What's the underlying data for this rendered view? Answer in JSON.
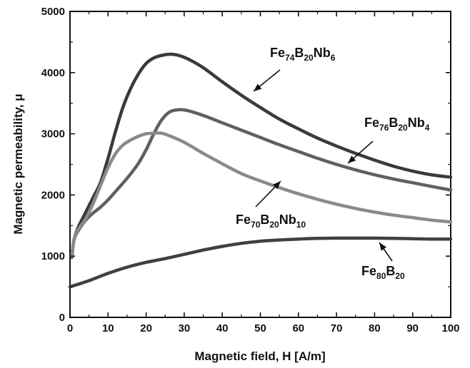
{
  "chart_data": {
    "type": "line",
    "title": "",
    "xlabel": "Magnetic field, H [A/m]",
    "ylabel": "Magnetic permeability, μ",
    "xlim": [
      0,
      100
    ],
    "ylim": [
      0,
      5000
    ],
    "xticks": [
      0,
      10,
      20,
      30,
      40,
      50,
      60,
      70,
      80,
      90,
      100
    ],
    "yticks": [
      0,
      1000,
      2000,
      3000,
      4000,
      5000
    ],
    "grid": false,
    "legend": "inline annotations with arrows",
    "series": [
      {
        "name": "Fe74B20Nb6",
        "label_parts": [
          [
            "Fe",
            ""
          ],
          [
            "74",
            "sub"
          ],
          [
            "B",
            ""
          ],
          [
            "20",
            "sub"
          ],
          [
            "Nb",
            ""
          ],
          [
            "6",
            "sub"
          ]
        ],
        "color": "#3a3a3a",
        "x": [
          0.5,
          1,
          2,
          4,
          6,
          8,
          10,
          12,
          14,
          16,
          18,
          20,
          22,
          24,
          26,
          28,
          30,
          32,
          35,
          40,
          45,
          50,
          55,
          60,
          65,
          70,
          75,
          80,
          85,
          90,
          95,
          100
        ],
        "y": [
          980,
          1250,
          1450,
          1700,
          1950,
          2200,
          2600,
          3050,
          3450,
          3750,
          3980,
          4150,
          4240,
          4280,
          4300,
          4290,
          4250,
          4190,
          4080,
          3850,
          3630,
          3430,
          3240,
          3080,
          2930,
          2800,
          2680,
          2570,
          2470,
          2390,
          2330,
          2290
        ]
      },
      {
        "name": "Fe76B20Nb4",
        "label_parts": [
          [
            "Fe",
            ""
          ],
          [
            "76",
            "sub"
          ],
          [
            "B",
            ""
          ],
          [
            "20",
            "sub"
          ],
          [
            "Nb",
            ""
          ],
          [
            "4",
            "sub"
          ]
        ],
        "color": "#606060",
        "x": [
          0.5,
          1,
          2,
          4,
          6,
          8,
          10,
          12,
          14,
          16,
          18,
          20,
          22,
          24,
          26,
          28,
          30,
          32,
          35,
          40,
          45,
          50,
          55,
          60,
          65,
          70,
          75,
          80,
          85,
          90,
          95,
          100
        ],
        "y": [
          1000,
          1250,
          1400,
          1580,
          1700,
          1800,
          1920,
          2060,
          2200,
          2350,
          2520,
          2740,
          3000,
          3220,
          3350,
          3390,
          3390,
          3360,
          3300,
          3180,
          3060,
          2940,
          2820,
          2710,
          2600,
          2500,
          2410,
          2330,
          2260,
          2200,
          2140,
          2080
        ]
      },
      {
        "name": "Fe70B20Nb10",
        "label_parts": [
          [
            "Fe",
            ""
          ],
          [
            "70",
            "sub"
          ],
          [
            "B",
            ""
          ],
          [
            "20",
            "sub"
          ],
          [
            "Nb",
            ""
          ],
          [
            "10",
            "sub"
          ]
        ],
        "color": "#8a8a8a",
        "x": [
          0.5,
          1,
          2,
          4,
          6,
          8,
          10,
          12,
          14,
          16,
          18,
          20,
          22,
          24,
          26,
          28,
          30,
          32,
          35,
          40,
          45,
          50,
          55,
          60,
          65,
          70,
          75,
          80,
          85,
          90,
          95,
          100
        ],
        "y": [
          1000,
          1250,
          1420,
          1600,
          1850,
          2150,
          2450,
          2680,
          2820,
          2900,
          2960,
          3000,
          3010,
          3010,
          2970,
          2920,
          2860,
          2790,
          2680,
          2510,
          2350,
          2230,
          2120,
          2020,
          1930,
          1850,
          1780,
          1720,
          1670,
          1630,
          1590,
          1560
        ]
      },
      {
        "name": "Fe80B20",
        "label_parts": [
          [
            "Fe",
            ""
          ],
          [
            "80",
            "sub"
          ],
          [
            "B",
            ""
          ],
          [
            "20",
            "sub"
          ]
        ],
        "color": "#404040",
        "x": [
          0,
          5,
          10,
          15,
          20,
          25,
          30,
          35,
          40,
          45,
          50,
          55,
          60,
          65,
          70,
          75,
          80,
          85,
          90,
          95,
          100
        ],
        "y": [
          500,
          600,
          720,
          820,
          900,
          960,
          1030,
          1100,
          1160,
          1210,
          1245,
          1265,
          1280,
          1290,
          1295,
          1295,
          1295,
          1290,
          1285,
          1280,
          1280
        ]
      }
    ]
  }
}
